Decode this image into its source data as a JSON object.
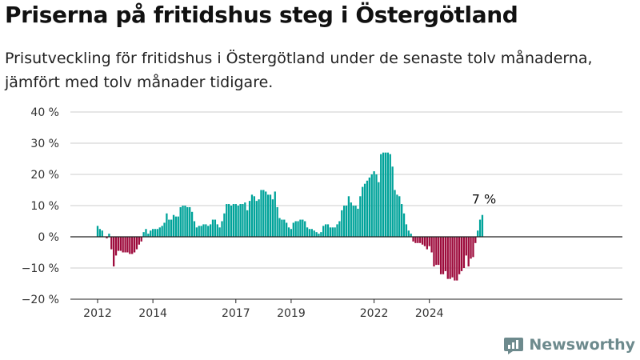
{
  "header": {
    "title": "Priserna på fritidshus steg i Östergötland",
    "subtitle": "Prisutveckling för fritidshus i Östergötland under de senaste tolv månaderna, jämfört med tolv månader tidigare."
  },
  "brand": {
    "name": "Newsworthy",
    "icon": "newsworthy-logo-icon",
    "color": "#6d8a8d"
  },
  "colors": {
    "positive": "#00a39a",
    "negative": "#9d0b3c",
    "grid": "#cccccc",
    "zero_line": "#222222"
  },
  "chart_data": {
    "type": "bar",
    "ylim": [
      -20,
      40
    ],
    "yticks": [
      -20,
      -10,
      0,
      10,
      20,
      30,
      40
    ],
    "ytick_labels": [
      "−20 %",
      "−10 %",
      "0 %",
      "10 %",
      "20 %",
      "30 %",
      "40 %"
    ],
    "xticks": [
      {
        "label": "2012",
        "index": 0
      },
      {
        "label": "2014",
        "index": 24
      },
      {
        "label": "2017",
        "index": 60
      },
      {
        "label": "2019",
        "index": 84
      },
      {
        "label": "2022",
        "index": 120
      },
      {
        "label": "2024",
        "index": 144
      }
    ],
    "grid": true,
    "last_value_label": "7 %",
    "values": [
      3.5,
      2.5,
      2,
      0,
      -0.5,
      1,
      -4,
      -9.5,
      -6,
      -4.5,
      -4.5,
      -5,
      -5,
      -5,
      -5.5,
      -5.5,
      -5,
      -4,
      -2.5,
      -1.5,
      1.5,
      2.5,
      1,
      2,
      2.5,
      2.5,
      2.5,
      3,
      3.5,
      4.5,
      7.5,
      5.5,
      5.5,
      7,
      6.5,
      6.5,
      9.5,
      10,
      10,
      9.5,
      9.5,
      8,
      5,
      3,
      3.5,
      3.5,
      4,
      4,
      3.5,
      4,
      5.5,
      5.5,
      4,
      3,
      5,
      7.5,
      10.5,
      10.5,
      10,
      10.5,
      10.5,
      10,
      10.5,
      10.5,
      11,
      8.5,
      11.5,
      13.5,
      13,
      11.5,
      12,
      15,
      15,
      14.5,
      13.5,
      13.5,
      12,
      14.5,
      9.5,
      6,
      5.5,
      5.5,
      4.5,
      3,
      2.5,
      4.5,
      5,
      5,
      5.5,
      5.5,
      5,
      3,
      2.5,
      2.5,
      2,
      1.5,
      1,
      1.5,
      3.5,
      4,
      4,
      3,
      3,
      3,
      4,
      5,
      8.5,
      10,
      10,
      13,
      11,
      10,
      10,
      9,
      13,
      16,
      17,
      18,
      19,
      20,
      21,
      20,
      17.5,
      26.5,
      27,
      27,
      27,
      26.5,
      22.5,
      15,
      13.5,
      13,
      10.5,
      7.5,
      4,
      2,
      1,
      -1.5,
      -2,
      -2,
      -2,
      -2.5,
      -3,
      -4,
      -3,
      -5,
      -9.5,
      -9,
      -9,
      -12,
      -12,
      -11,
      -13.5,
      -13.5,
      -13,
      -14,
      -14,
      -12,
      -11,
      -10,
      -6,
      -9.5,
      -7,
      -6.5,
      -2,
      2,
      5.5,
      7
    ]
  }
}
